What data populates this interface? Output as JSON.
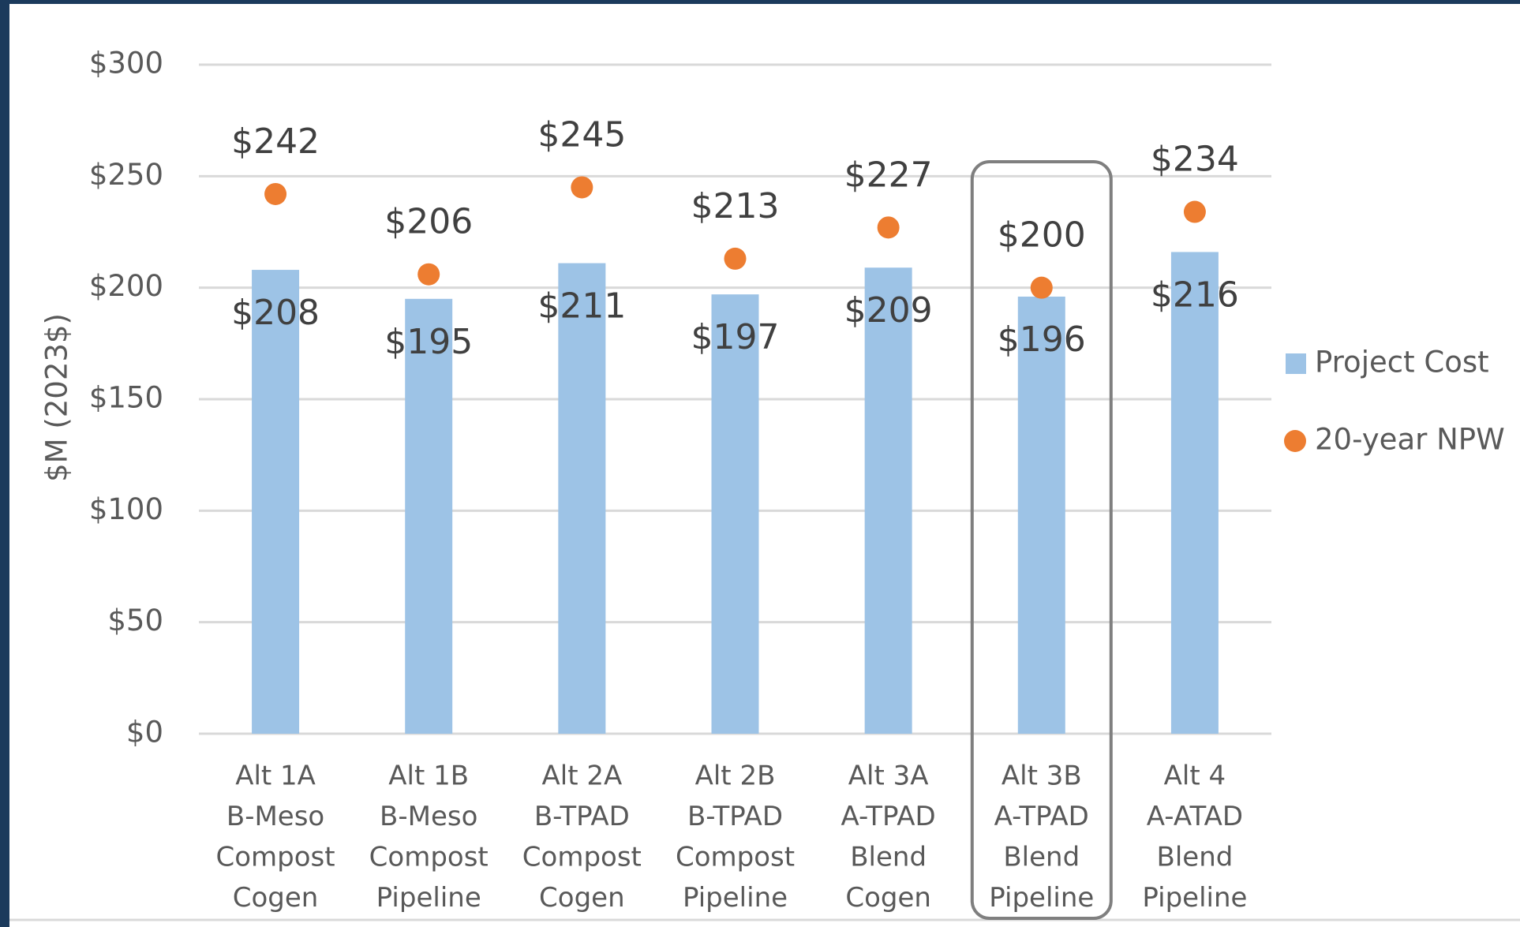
{
  "chart_data": {
    "type": "bar_dot",
    "ylabel": "$M (2023$)",
    "categories": [
      [
        "Alt 1A",
        "B-Meso",
        "Compost",
        "Cogen"
      ],
      [
        "Alt 1B",
        "B-Meso",
        "Compost",
        "Pipeline"
      ],
      [
        "Alt 2A",
        "B-TPAD",
        "Compost",
        "Cogen"
      ],
      [
        "Alt 2B",
        "B-TPAD",
        "Compost",
        "Pipeline"
      ],
      [
        "Alt 3A",
        "A-TPAD",
        "Blend",
        "Cogen"
      ],
      [
        "Alt 3B",
        "A-TPAD",
        "Blend",
        "Pipeline"
      ],
      [
        "Alt 4",
        "A-ATAD",
        "Blend",
        "Pipeline"
      ]
    ],
    "series": [
      {
        "name": "Project Cost",
        "color": "#9dc3e6",
        "values": [
          208,
          195,
          211,
          197,
          209,
          196,
          216
        ],
        "value_labels": [
          "$208",
          "$195",
          "$211",
          "$197",
          "$209",
          "$196",
          "$216"
        ]
      },
      {
        "name": "20-year NPW",
        "color": "#ed7d31",
        "values": [
          242,
          206,
          245,
          213,
          227,
          200,
          234
        ],
        "value_labels": [
          "$242",
          "$206",
          "$245",
          "$213",
          "$227",
          "$200",
          "$234"
        ]
      }
    ],
    "ylim": [
      0,
      300
    ],
    "yticks": [
      {
        "value": 0,
        "label": "$0"
      },
      {
        "value": 50,
        "label": "$50"
      },
      {
        "value": 100,
        "label": "$100"
      },
      {
        "value": 150,
        "label": "$150"
      },
      {
        "value": 200,
        "label": "$200"
      },
      {
        "value": 250,
        "label": "$250"
      },
      {
        "value": 300,
        "label": "$300"
      }
    ],
    "grid": true,
    "legend": "right"
  }
}
